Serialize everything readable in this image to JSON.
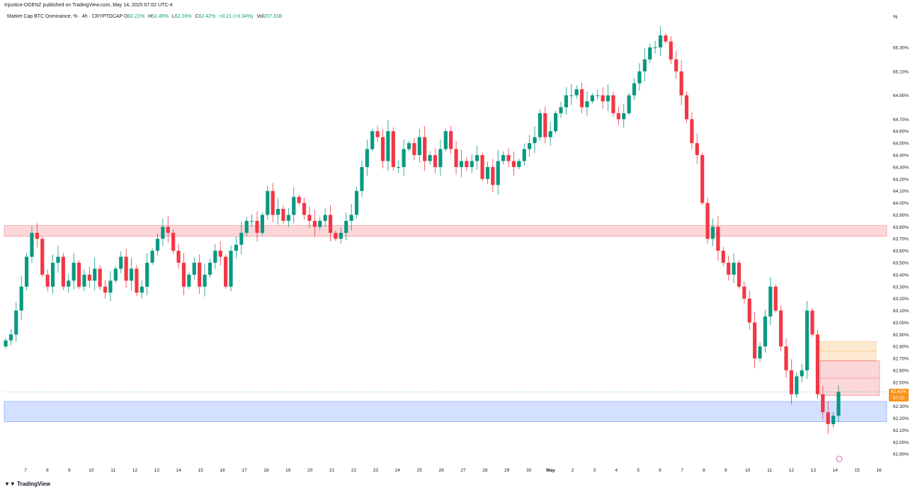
{
  "header": {
    "published": "Injustice-DGENZ published on TradingView.com, May 14, 2025 07:02 UTC-4",
    "symbol": "Market Cap BTC Dominance, % · 4h · CRYPTOCAP",
    "open_label": "O",
    "open": "62.21%",
    "high_label": "H",
    "high": "62.45%",
    "low_label": "L",
    "low": "62.20%",
    "close_label": "C",
    "close": "62.42%",
    "change": "+0.21 (+0.34%)",
    "vol_label": "Vol",
    "vol": "207.31B"
  },
  "footer": {
    "brand": "TradingView"
  },
  "axis": {
    "unit": "%"
  },
  "last_price": {
    "value": "62.42%",
    "countdown": "57:20"
  },
  "colors": {
    "up": "#089981",
    "down": "#f23645",
    "resistance_zone": "#f23645",
    "support_zone": "#2962ff",
    "fvg_upper": "#f7931a",
    "fvg_lower": "#f23645",
    "badge": "#f7931a"
  },
  "chart_data": {
    "type": "candlestick",
    "timeframe": "4h",
    "ylim": [
      61.86,
      65.46
    ],
    "y_ticks": [
      "65.30%",
      "65.10%",
      "64.90%",
      "64.70%",
      "64.60%",
      "64.50%",
      "64.40%",
      "64.30%",
      "64.20%",
      "64.10%",
      "64.00%",
      "63.90%",
      "63.80%",
      "63.70%",
      "63.60%",
      "63.50%",
      "63.40%",
      "63.30%",
      "63.20%",
      "63.10%",
      "63.00%",
      "62.90%",
      "62.80%",
      "62.70%",
      "62.60%",
      "62.50%",
      "62.40%",
      "62.30%",
      "62.20%",
      "62.10%",
      "62.00%",
      "61.90%"
    ],
    "x_ticks": [
      "7",
      "8",
      "9",
      "10",
      "11",
      "12",
      "13",
      "14",
      "15",
      "16",
      "17",
      "18",
      "19",
      "20",
      "21",
      "22",
      "23",
      "24",
      "25",
      "26",
      "27",
      "28",
      "29",
      "30",
      "May",
      "2",
      "3",
      "4",
      "5",
      "6",
      "7",
      "8",
      "9",
      "10",
      "11",
      "12",
      "13",
      "14",
      "15",
      "16"
    ],
    "zones": [
      {
        "name": "resistance",
        "from": 63.72,
        "to": 63.81
      },
      {
        "name": "support",
        "from": 62.17,
        "to": 62.34
      },
      {
        "name": "fvg-upper",
        "from": 62.68,
        "to": 62.84
      },
      {
        "name": "fvg-lower",
        "from": 62.39,
        "to": 62.68
      }
    ],
    "closes": [
      62.85,
      62.9,
      63.1,
      63.3,
      63.55,
      63.75,
      63.7,
      63.4,
      63.3,
      63.5,
      63.55,
      63.3,
      63.35,
      63.5,
      63.3,
      63.4,
      63.35,
      63.45,
      63.3,
      63.25,
      63.35,
      63.45,
      63.55,
      63.35,
      63.45,
      63.25,
      63.3,
      63.5,
      63.6,
      63.7,
      63.8,
      63.75,
      63.6,
      63.5,
      63.3,
      63.4,
      63.5,
      63.3,
      63.4,
      63.5,
      63.6,
      63.55,
      63.3,
      63.6,
      63.65,
      63.75,
      63.85,
      63.85,
      63.75,
      63.9,
      64.1,
      63.9,
      63.95,
      63.85,
      63.9,
      64.05,
      64.0,
      63.9,
      63.85,
      63.8,
      63.85,
      63.9,
      63.75,
      63.7,
      63.75,
      63.85,
      63.9,
      64.1,
      64.3,
      64.45,
      64.6,
      64.55,
      64.35,
      64.6,
      64.3,
      64.3,
      64.45,
      64.5,
      64.4,
      64.55,
      64.35,
      64.4,
      64.3,
      64.45,
      64.6,
      64.45,
      64.3,
      64.35,
      64.3,
      64.35,
      64.4,
      64.2,
      64.3,
      64.15,
      64.35,
      64.4,
      64.35,
      64.3,
      64.35,
      64.45,
      64.5,
      64.55,
      64.75,
      64.55,
      64.6,
      64.75,
      64.8,
      64.9,
      64.9,
      64.95,
      64.8,
      64.85,
      64.9,
      64.9,
      64.85,
      64.9,
      64.75,
      64.7,
      64.75,
      64.9,
      65.0,
      65.1,
      65.2,
      65.3,
      65.3,
      65.4,
      65.35,
      65.2,
      65.1,
      64.9,
      64.7,
      64.5,
      64.4,
      64.0,
      63.7,
      63.8,
      63.6,
      63.5,
      63.4,
      63.5,
      63.3,
      63.2,
      63.0,
      62.7,
      62.8,
      63.05,
      63.3,
      63.1,
      62.8,
      62.6,
      62.4,
      62.55,
      62.6,
      63.1,
      62.9,
      62.4,
      62.25,
      62.15,
      62.22,
      62.42
    ]
  }
}
